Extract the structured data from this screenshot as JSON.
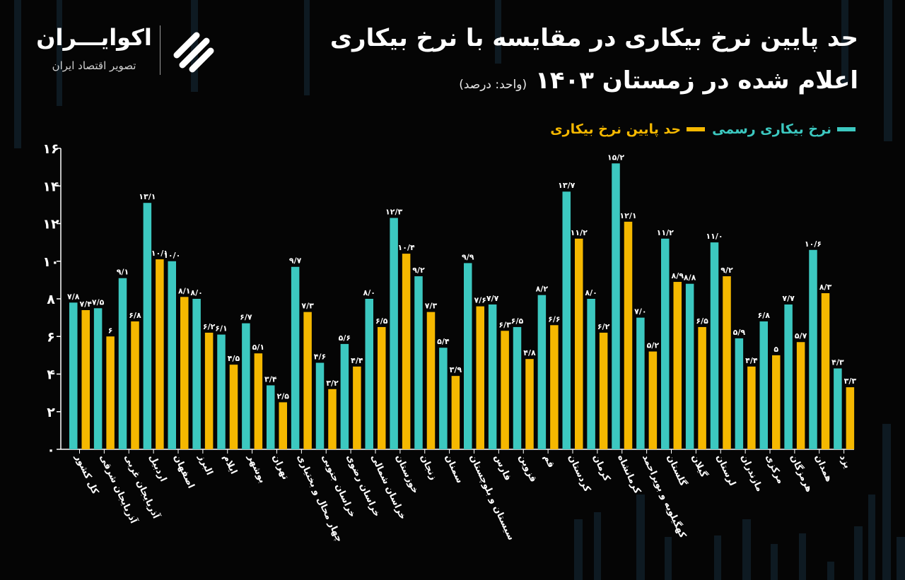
{
  "brand": {
    "name": "اکوایـــران",
    "subtitle": "تصویر اقتصاد ایران"
  },
  "title": {
    "line1": "حد پایین نرخ بیکاری در مقایسه با نرخ بیکاری",
    "line2": "اعلام شده در زمستان ۱۴۰۳",
    "unit": "(واحد: درصد)"
  },
  "colors": {
    "official": "#3cc8c0",
    "lower_bound": "#f5b800",
    "background": "#050505"
  },
  "chart_data": {
    "type": "bar",
    "categories": [
      "کل کشور",
      "آذربایجان شرقی",
      "آذربایجان غربی",
      "اردبیل",
      "اصفهان",
      "البرز",
      "ایلام",
      "بوشهر",
      "تهران",
      "چهار محال و بختیاری",
      "خراسان جنوبی",
      "خراسان رضوی",
      "خراسان شمالی",
      "خوزستان",
      "زنجان",
      "سمنان",
      "سیستان و بلوچستان",
      "فارس",
      "قزوین",
      "قم",
      "کردستان",
      "کرمان",
      "کرمانشاه",
      "کهگیلویه و بویراحمد",
      "گلستان",
      "گیلان",
      "لرستان",
      "مازندران",
      "مرکزی",
      "هرمزگان",
      "همدان",
      "یزد"
    ],
    "series": [
      {
        "name": "نرخ بیکاری رسمی",
        "values": [
          7.8,
          7.5,
          9.1,
          13.1,
          10.0,
          8.0,
          6.1,
          6.7,
          3.4,
          9.7,
          4.6,
          5.6,
          8.0,
          12.3,
          9.2,
          5.4,
          9.9,
          7.7,
          6.5,
          8.2,
          13.7,
          8.0,
          15.2,
          7.0,
          11.2,
          8.8,
          11.0,
          5.9,
          6.8,
          7.7,
          10.6,
          4.3
        ],
        "labels": [
          "۷/۸",
          "۷/۵",
          "۹/۱",
          "۱۳/۱",
          "۱۰/۰",
          "۸/۰",
          "۶/۱",
          "۶/۷",
          "۳/۴",
          "۹/۷",
          "۴/۶",
          "۵/۶",
          "۸/۰",
          "۱۲/۳",
          "۹/۲",
          "۵/۴",
          "۹/۹",
          "۷/۷",
          "۶/۵",
          "۸/۲",
          "۱۳/۷",
          "۸/۰",
          "۱۵/۲",
          "۷/۰",
          "۱۱/۲",
          "۸/۸",
          "۱۱/۰",
          "۵/۹",
          "۶/۸",
          "۷/۷",
          "۱۰/۶",
          "۴/۳"
        ]
      },
      {
        "name": "حد پایین نرخ بیکاری",
        "values": [
          7.4,
          6.0,
          6.8,
          10.1,
          8.1,
          6.2,
          4.5,
          5.1,
          2.5,
          7.3,
          3.2,
          4.4,
          6.5,
          10.4,
          7.3,
          3.9,
          7.6,
          6.3,
          4.8,
          6.6,
          11.2,
          6.2,
          12.1,
          5.2,
          8.9,
          6.5,
          9.2,
          4.4,
          5.0,
          5.7,
          8.3,
          3.3
        ],
        "labels": [
          "۷/۴",
          "۶",
          "۶/۸",
          "۱۰/۱",
          "۸/۱",
          "۶/۲",
          "۴/۵",
          "۵/۱",
          "۲/۵",
          "۷/۳",
          "۳/۲",
          "۴/۴",
          "۶/۵",
          "۱۰/۴",
          "۷/۳",
          "۳/۹",
          "۷/۶",
          "۶/۳",
          "۴/۸",
          "۶/۶",
          "۱۱/۲",
          "۶/۲",
          "۱۲/۱",
          "۵/۲",
          "۸/۹",
          "۶/۵",
          "۹/۲",
          "۴/۴",
          "۵",
          "۵/۷",
          "۸/۳",
          "۳/۳"
        ]
      }
    ],
    "yticks": [
      0,
      2,
      4,
      6,
      8,
      10,
      12,
      14,
      16
    ],
    "ytick_labels": [
      "۰",
      "۲",
      "۴",
      "۶",
      "۸",
      "۱۰",
      "۱۲",
      "۱۴",
      "۱۶"
    ],
    "ylim": [
      0,
      16
    ],
    "legend_position": "top-right",
    "grid": false
  }
}
